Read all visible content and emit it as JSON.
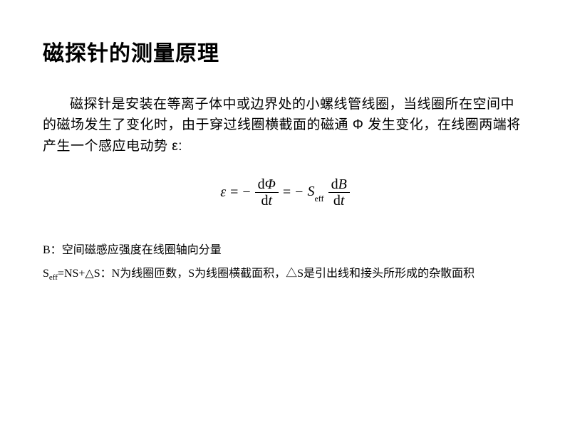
{
  "title": "磁探针的测量原理",
  "paragraph": "磁探针是安装在等离子体中或边界处的小螺线管线圈，当线圈所在空间中的磁场发生了变化时，由于穿过线圈横截面的磁通 Φ 发生变化，在线圈两端将产生一个感应电动势 ε:",
  "equation": {
    "epsilon": "ε",
    "eq": "=",
    "minus": "−",
    "d": "d",
    "Phi": "Φ",
    "t": "t",
    "S": "S",
    "eff": "eff",
    "B": "B"
  },
  "notes": {
    "line1_prefix": "B：",
    "line1_text": "空间磁感应强度在线圈轴向分量",
    "line2_S": "S",
    "line2_eff": "eff",
    "line2_eqNS": "=NS+△S：",
    "line2_text": "N为线圈匝数，S为线圈横截面积，△S是引出线和接头所形成的杂散面积"
  },
  "style": {
    "background": "#ffffff",
    "text_color": "#000000",
    "title_fontsize": 30,
    "body_fontsize": 19,
    "notes_fontsize": 16,
    "equation_fontsize": 20
  }
}
